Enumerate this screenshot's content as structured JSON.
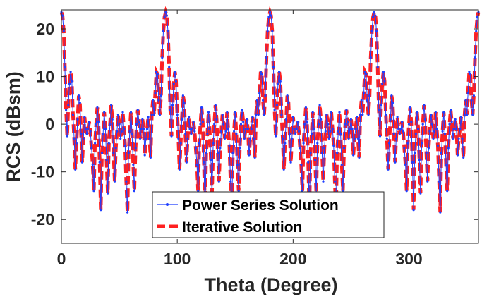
{
  "chart_data": {
    "type": "line",
    "xlabel": "Theta (Degree)",
    "ylabel": "RCS (dBsm)",
    "xlim": [
      0,
      360
    ],
    "ylim": [
      -25,
      24
    ],
    "x_ticks": [
      0,
      100,
      200,
      300
    ],
    "y_ticks": [
      20,
      10,
      0,
      -10,
      -20
    ],
    "x_tick_labels": [
      "0",
      "100",
      "200",
      "300"
    ],
    "y_tick_labels": [
      "20",
      "10",
      "0",
      "-10",
      "-20"
    ],
    "grid": false,
    "legend_position": "bottom-center",
    "period_deg": 90,
    "x": [
      0,
      1,
      2,
      3,
      4,
      5,
      6,
      7,
      8,
      9,
      10,
      11,
      12,
      13,
      14,
      15,
      16,
      17,
      18,
      19,
      20,
      21,
      22,
      23,
      24,
      25,
      26,
      27,
      28,
      29,
      30,
      31,
      32,
      33,
      34,
      35,
      36,
      37,
      38,
      39,
      40,
      41,
      42,
      43,
      44,
      45,
      46,
      47,
      48,
      49,
      50,
      51,
      52,
      53,
      54,
      55,
      56,
      57,
      58,
      59,
      60,
      61,
      62,
      63,
      64,
      65,
      66,
      67,
      68,
      69,
      70,
      71,
      72,
      73,
      74,
      75,
      76,
      77,
      78,
      79,
      80,
      81,
      82,
      83,
      84,
      85,
      86,
      87,
      88,
      89,
      90
    ],
    "series": [
      {
        "name": "Power Series Solution",
        "color": "#1f3fff",
        "style": "solid-thin-with-dot-markers",
        "values": [
          23.5,
          22.8,
          19.5,
          12.0,
          3.0,
          -2.5,
          4.0,
          8.5,
          11.0,
          9.0,
          2.0,
          -3.0,
          -9.5,
          -4.0,
          1.0,
          6.0,
          4.5,
          -2.0,
          -8.0,
          -3.0,
          1.5,
          -1.0,
          -2.0,
          -1.0,
          0.5,
          -1.5,
          -5.0,
          -8.5,
          -14.0,
          -4.0,
          0.0,
          3.5,
          0.5,
          -8.0,
          -18.0,
          -6.0,
          -2.0,
          2.5,
          -1.0,
          -7.5,
          -14.5,
          -4.0,
          0.0,
          4.0,
          1.0,
          -6.0,
          -12.0,
          -5.0,
          -1.5,
          2.0,
          0.0,
          -3.0,
          -1.5,
          2.5,
          -1.0,
          -4.5,
          -12.0,
          -18.5,
          -6.0,
          -1.5,
          2.5,
          -2.0,
          -8.5,
          -14.0,
          -5.0,
          0.0,
          3.0,
          0.5,
          -3.0,
          -1.0,
          1.0,
          -1.0,
          -6.5,
          -3.0,
          -1.0,
          1.5,
          -3.0,
          -7.0,
          2.0,
          5.0,
          2.0,
          6.5,
          11.0,
          10.5,
          5.0,
          2.0,
          6.0,
          14.0,
          19.5,
          22.5,
          23.5
        ]
      },
      {
        "name": "Iterative Solution",
        "color": "#ff2020",
        "style": "dashed-thick",
        "values": [
          23.5,
          22.8,
          19.5,
          12.0,
          3.0,
          -2.5,
          4.0,
          8.5,
          11.0,
          9.0,
          2.0,
          -3.0,
          -9.5,
          -4.0,
          1.0,
          6.0,
          4.5,
          -2.0,
          -8.0,
          -3.0,
          1.5,
          -1.0,
          -2.0,
          -1.0,
          0.5,
          -1.5,
          -5.0,
          -8.5,
          -14.0,
          -4.0,
          0.0,
          3.5,
          0.5,
          -8.0,
          -18.0,
          -6.0,
          -2.0,
          2.5,
          -1.0,
          -7.5,
          -14.5,
          -4.0,
          0.0,
          4.0,
          1.0,
          -6.0,
          -12.0,
          -5.0,
          -1.5,
          2.0,
          0.0,
          -3.0,
          -1.5,
          2.5,
          -1.0,
          -4.5,
          -12.0,
          -18.5,
          -6.0,
          -1.5,
          2.5,
          -2.0,
          -8.5,
          -14.0,
          -5.0,
          0.0,
          3.0,
          0.5,
          -3.0,
          -1.0,
          1.0,
          -1.0,
          -6.5,
          -3.0,
          -1.0,
          1.5,
          -3.0,
          -7.0,
          2.0,
          5.0,
          2.0,
          6.5,
          11.0,
          10.5,
          5.0,
          2.0,
          6.0,
          14.0,
          19.5,
          22.5,
          23.5
        ]
      }
    ]
  }
}
